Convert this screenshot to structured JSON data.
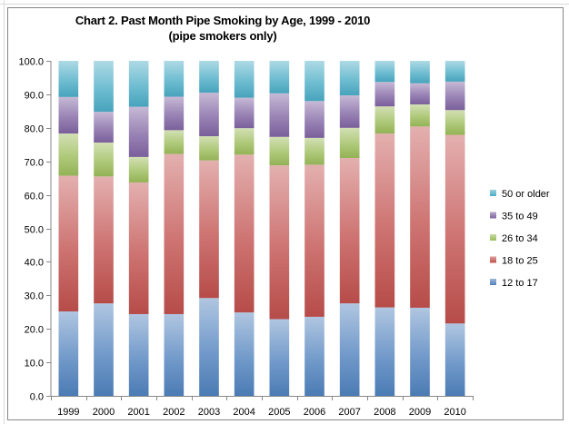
{
  "title_line1": "Chart 2. Past Month Pipe Smoking by Age, 1999 - 2010",
  "title_line2": "(pipe smokers only)",
  "chart_data": {
    "type": "bar",
    "stacked": true,
    "categories": [
      "1999",
      "2000",
      "2001",
      "2002",
      "2003",
      "2004",
      "2005",
      "2006",
      "2007",
      "2008",
      "2009",
      "2010"
    ],
    "series": [
      {
        "name": "12 to 17",
        "color": "#4f81bd",
        "values": [
          25.2,
          27.6,
          24.4,
          24.4,
          29.2,
          24.9,
          22.9,
          23.6,
          27.6,
          26.4,
          26.3,
          21.6
        ]
      },
      {
        "name": "18 to 25",
        "color": "#c0504d",
        "values": [
          40.5,
          37.9,
          39.3,
          47.8,
          41.1,
          47.1,
          45.9,
          45.4,
          43.4,
          51.9,
          54.1,
          56.3
        ]
      },
      {
        "name": "26 to 34",
        "color": "#9bbb59",
        "values": [
          12.6,
          10.1,
          7.6,
          7.1,
          7.2,
          7.9,
          8.5,
          8.0,
          9.0,
          8.1,
          6.6,
          7.4
        ]
      },
      {
        "name": "35 to 49",
        "color": "#8064a2",
        "values": [
          10.9,
          9.2,
          15.0,
          10.0,
          13.0,
          9.1,
          13.0,
          11.0,
          9.7,
          7.3,
          6.3,
          8.5
        ]
      },
      {
        "name": "50 or older",
        "color": "#4bacc6",
        "values": [
          10.8,
          15.2,
          13.7,
          10.7,
          9.5,
          11.0,
          9.7,
          12.0,
          10.3,
          6.3,
          6.7,
          6.2
        ]
      }
    ],
    "ylim": [
      0,
      100
    ],
    "yticks": [
      "0.0",
      "10.0",
      "20.0",
      "30.0",
      "40.0",
      "50.0",
      "60.0",
      "70.0",
      "80.0",
      "90.0",
      "100.0"
    ],
    "legend_position": "right",
    "grid": false
  }
}
